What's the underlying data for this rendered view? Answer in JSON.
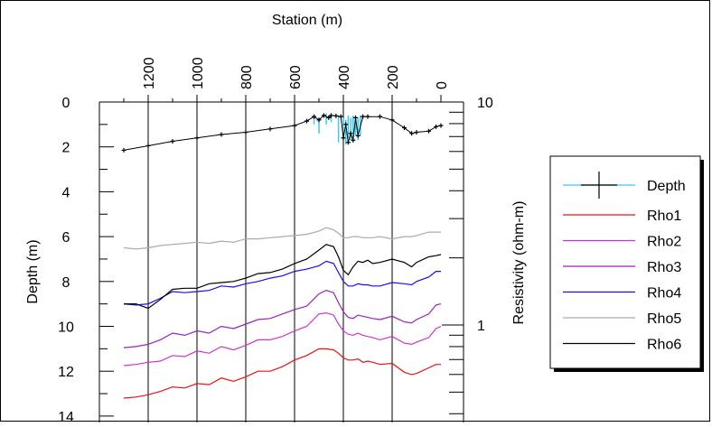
{
  "chart_data": {
    "type": "line",
    "title": "",
    "x_axis": {
      "label": "Station (m)",
      "position": "top",
      "reversed": true,
      "range": [
        0,
        1300
      ],
      "ticks": [
        0,
        200,
        400,
        600,
        800,
        1000,
        1200
      ]
    },
    "y_left": {
      "label": "Depth (m)",
      "range": [
        0,
        14
      ],
      "inverted": true,
      "ticks": [
        0,
        2,
        4,
        6,
        8,
        10,
        12,
        14
      ]
    },
    "y_right": {
      "label": "Resistivity (ohm-m)",
      "scale": "log",
      "major_ticks": [
        10,
        1
      ]
    },
    "grid": "vertical-major",
    "legend": {
      "placement": "right",
      "entries": [
        "Depth",
        "Rho1",
        "Rho2",
        "Rho3",
        "Rho4",
        "Rho5",
        "Rho6"
      ]
    },
    "colors": {
      "Depth": "#33ccee",
      "Rho1": "#ee1111",
      "Rho2": "#cc33cc",
      "Rho3": "#9922bb",
      "Rho4": "#1111ee",
      "Rho5": "#aaaaaa",
      "Rho6": "#000000"
    },
    "depth_series": {
      "name": "Depth",
      "x": [
        1300,
        1200,
        1100,
        1000,
        900,
        800,
        700,
        600,
        550,
        520,
        500,
        480,
        460,
        450,
        430,
        410,
        400,
        390,
        380,
        370,
        360,
        350,
        340,
        320,
        300,
        250,
        200,
        150,
        120,
        100,
        50,
        20,
        0
      ],
      "y": [
        2.15,
        1.95,
        1.75,
        1.6,
        1.45,
        1.35,
        1.2,
        1.05,
        0.85,
        0.65,
        0.8,
        0.6,
        0.7,
        0.6,
        0.62,
        0.65,
        1.6,
        1.0,
        1.8,
        1.4,
        1.7,
        0.7,
        1.5,
        0.65,
        0.65,
        0.65,
        0.8,
        1.15,
        1.4,
        1.35,
        1.3,
        1.1,
        1.05
      ],
      "error_bars_x": [
        520,
        500,
        470,
        450,
        420,
        400,
        390,
        380,
        370,
        360,
        350,
        340,
        330
      ],
      "error_bars_y": [
        [
          0.6,
          1.0
        ],
        [
          0.7,
          1.4
        ],
        [
          0.5,
          1.0
        ],
        [
          0.6,
          0.9
        ],
        [
          0.6,
          1.8
        ],
        [
          0.7,
          1.7
        ],
        [
          0.8,
          1.9
        ],
        [
          0.6,
          1.6
        ],
        [
          0.7,
          1.7
        ],
        [
          0.6,
          1.8
        ],
        [
          0.7,
          1.5
        ],
        [
          0.7,
          1.7
        ],
        [
          0.6,
          1.5
        ]
      ]
    },
    "x": [
      1300,
      1250,
      1200,
      1150,
      1100,
      1050,
      1000,
      950,
      900,
      850,
      800,
      750,
      700,
      650,
      600,
      550,
      500,
      470,
      440,
      420,
      400,
      380,
      360,
      340,
      320,
      300,
      280,
      250,
      200,
      150,
      120,
      100,
      50,
      20,
      0
    ],
    "series": [
      {
        "name": "Rho1",
        "depth_equiv": [
          13.2,
          13.15,
          13.05,
          12.9,
          12.7,
          12.75,
          12.55,
          12.6,
          12.3,
          12.45,
          12.25,
          12.0,
          12.0,
          11.8,
          11.5,
          11.3,
          11.0,
          11.0,
          11.05,
          11.2,
          11.4,
          11.5,
          11.5,
          11.45,
          11.6,
          11.55,
          11.6,
          11.7,
          11.65,
          12.05,
          12.15,
          12.1,
          11.85,
          11.7,
          11.7
        ]
      },
      {
        "name": "Rho2",
        "depth_equiv": [
          11.75,
          11.7,
          11.6,
          11.55,
          11.3,
          11.35,
          11.1,
          11.2,
          10.9,
          11.05,
          10.85,
          10.6,
          10.6,
          10.45,
          10.2,
          10.0,
          9.45,
          9.4,
          9.5,
          9.9,
          10.2,
          10.35,
          10.4,
          10.3,
          10.4,
          10.45,
          10.5,
          10.6,
          10.45,
          10.75,
          10.8,
          10.7,
          10.5,
          10.1,
          10.0
        ]
      },
      {
        "name": "Rho3",
        "depth_equiv": [
          10.95,
          10.9,
          10.8,
          10.6,
          10.3,
          10.4,
          10.2,
          10.3,
          10.0,
          10.1,
          9.9,
          9.7,
          9.65,
          9.45,
          9.25,
          9.1,
          8.55,
          8.4,
          8.5,
          8.95,
          9.35,
          9.6,
          9.65,
          9.5,
          9.55,
          9.6,
          9.65,
          9.7,
          9.55,
          9.8,
          9.85,
          9.7,
          9.45,
          9.05,
          9.0
        ]
      },
      {
        "name": "Rho4",
        "depth_equiv": [
          9.0,
          9.05,
          9.0,
          8.75,
          8.45,
          8.5,
          8.45,
          8.4,
          8.2,
          8.25,
          8.1,
          8.0,
          7.85,
          7.75,
          7.55,
          7.45,
          7.3,
          7.1,
          7.2,
          7.6,
          8.0,
          8.2,
          8.2,
          8.1,
          8.15,
          8.15,
          8.2,
          8.2,
          8.05,
          8.1,
          8.15,
          8.0,
          7.8,
          7.55,
          7.55
        ]
      },
      {
        "name": "Rho5",
        "depth_equiv": [
          6.5,
          6.55,
          6.5,
          6.4,
          6.35,
          6.3,
          6.25,
          6.3,
          6.2,
          6.25,
          6.1,
          6.1,
          6.05,
          6.0,
          5.95,
          5.9,
          5.75,
          5.6,
          5.7,
          5.85,
          6.05,
          6.05,
          6.0,
          6.0,
          6.05,
          6.05,
          6.05,
          6.0,
          6.1,
          6.0,
          6.0,
          5.95,
          5.8,
          5.8,
          5.8
        ]
      },
      {
        "name": "Rho6",
        "depth_equiv": [
          9.0,
          9.0,
          9.2,
          8.8,
          8.35,
          8.3,
          8.3,
          8.1,
          8.05,
          8.0,
          7.85,
          7.65,
          7.6,
          7.45,
          7.2,
          7.0,
          6.6,
          6.35,
          6.45,
          6.9,
          7.5,
          7.7,
          7.35,
          7.1,
          7.15,
          7.05,
          7.2,
          7.15,
          7.0,
          7.15,
          7.35,
          7.15,
          6.9,
          6.85,
          6.8
        ]
      }
    ]
  }
}
